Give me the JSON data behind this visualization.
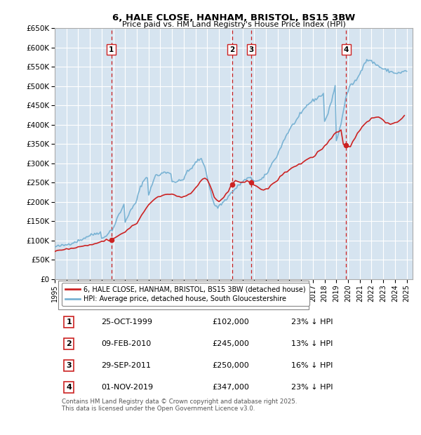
{
  "title": "6, HALE CLOSE, HANHAM, BRISTOL, BS15 3BW",
  "subtitle": "Price paid vs. HM Land Registry's House Price Index (HPI)",
  "ylim": [
    0,
    650000
  ],
  "yticks": [
    0,
    50000,
    100000,
    150000,
    200000,
    250000,
    300000,
    350000,
    400000,
    450000,
    500000,
    550000,
    600000,
    650000
  ],
  "ytick_labels": [
    "£0",
    "£50K",
    "£100K",
    "£150K",
    "£200K",
    "£250K",
    "£300K",
    "£350K",
    "£400K",
    "£450K",
    "£500K",
    "£550K",
    "£600K",
    "£650K"
  ],
  "xlim_start": 1995.0,
  "xlim_end": 2025.5,
  "plot_bg_color": "#d6e4f0",
  "grid_color": "#ffffff",
  "red_line_color": "#cc2222",
  "blue_line_color": "#7ab3d4",
  "marker_line_color": "#cc2222",
  "sale_dates": [
    1999.82,
    2010.11,
    2011.75,
    2019.84
  ],
  "sale_prices": [
    102000,
    245000,
    250000,
    347000
  ],
  "sale_labels": [
    "1",
    "2",
    "3",
    "4"
  ],
  "legend_red": "6, HALE CLOSE, HANHAM, BRISTOL, BS15 3BW (detached house)",
  "legend_blue": "HPI: Average price, detached house, South Gloucestershire",
  "table_data": [
    [
      "1",
      "25-OCT-1999",
      "£102,000",
      "23% ↓ HPI"
    ],
    [
      "2",
      "09-FEB-2010",
      "£245,000",
      "13% ↓ HPI"
    ],
    [
      "3",
      "29-SEP-2011",
      "£250,000",
      "16% ↓ HPI"
    ],
    [
      "4",
      "01-NOV-2019",
      "£347,000",
      "23% ↓ HPI"
    ]
  ],
  "footer": "Contains HM Land Registry data © Crown copyright and database right 2025.\nThis data is licensed under the Open Government Licence v3.0.",
  "hpi_years": [
    1995.0,
    1995.1,
    1995.2,
    1995.3,
    1995.4,
    1995.5,
    1995.6,
    1995.7,
    1995.8,
    1995.9,
    1996.0,
    1996.1,
    1996.2,
    1996.3,
    1996.4,
    1996.5,
    1996.6,
    1996.7,
    1996.8,
    1996.9,
    1997.0,
    1997.1,
    1997.2,
    1997.3,
    1997.4,
    1997.5,
    1997.6,
    1997.7,
    1997.8,
    1997.9,
    1998.0,
    1998.1,
    1998.2,
    1998.3,
    1998.4,
    1998.5,
    1998.6,
    1998.7,
    1998.8,
    1998.9,
    1999.0,
    1999.1,
    1999.2,
    1999.3,
    1999.4,
    1999.5,
    1999.6,
    1999.7,
    1999.8,
    1999.9,
    2000.0,
    2000.1,
    2000.2,
    2000.3,
    2000.4,
    2000.5,
    2000.6,
    2000.7,
    2000.8,
    2000.9,
    2001.0,
    2001.1,
    2001.2,
    2001.3,
    2001.4,
    2001.5,
    2001.6,
    2001.7,
    2001.8,
    2001.9,
    2002.0,
    2002.1,
    2002.2,
    2002.3,
    2002.4,
    2002.5,
    2002.6,
    2002.7,
    2002.8,
    2002.9,
    2003.0,
    2003.1,
    2003.2,
    2003.3,
    2003.4,
    2003.5,
    2003.6,
    2003.7,
    2003.8,
    2003.9,
    2004.0,
    2004.1,
    2004.2,
    2004.3,
    2004.4,
    2004.5,
    2004.6,
    2004.7,
    2004.8,
    2004.9,
    2005.0,
    2005.1,
    2005.2,
    2005.3,
    2005.4,
    2005.5,
    2005.6,
    2005.7,
    2005.8,
    2005.9,
    2006.0,
    2006.1,
    2006.2,
    2006.3,
    2006.4,
    2006.5,
    2006.6,
    2006.7,
    2006.8,
    2006.9,
    2007.0,
    2007.1,
    2007.2,
    2007.3,
    2007.4,
    2007.5,
    2007.6,
    2007.7,
    2007.8,
    2007.9,
    2008.0,
    2008.1,
    2008.2,
    2008.3,
    2008.4,
    2008.5,
    2008.6,
    2008.7,
    2008.8,
    2008.9,
    2009.0,
    2009.1,
    2009.2,
    2009.3,
    2009.4,
    2009.5,
    2009.6,
    2009.7,
    2009.8,
    2009.9,
    2010.0,
    2010.1,
    2010.2,
    2010.3,
    2010.4,
    2010.5,
    2010.6,
    2010.7,
    2010.8,
    2010.9,
    2011.0,
    2011.1,
    2011.2,
    2011.3,
    2011.4,
    2011.5,
    2011.6,
    2011.7,
    2011.8,
    2011.9,
    2012.0,
    2012.1,
    2012.2,
    2012.3,
    2012.4,
    2012.5,
    2012.6,
    2012.7,
    2012.8,
    2012.9,
    2013.0,
    2013.1,
    2013.2,
    2013.3,
    2013.4,
    2013.5,
    2013.6,
    2013.7,
    2013.8,
    2013.9,
    2014.0,
    2014.1,
    2014.2,
    2014.3,
    2014.4,
    2014.5,
    2014.6,
    2014.7,
    2014.8,
    2014.9,
    2015.0,
    2015.1,
    2015.2,
    2015.3,
    2015.4,
    2015.5,
    2015.6,
    2015.7,
    2015.8,
    2015.9,
    2016.0,
    2016.1,
    2016.2,
    2016.3,
    2016.4,
    2016.5,
    2016.6,
    2016.7,
    2016.8,
    2016.9,
    2017.0,
    2017.1,
    2017.2,
    2017.3,
    2017.4,
    2017.5,
    2017.6,
    2017.7,
    2017.8,
    2017.9,
    2018.0,
    2018.1,
    2018.2,
    2018.3,
    2018.4,
    2018.5,
    2018.6,
    2018.7,
    2018.8,
    2018.9,
    2019.0,
    2019.1,
    2019.2,
    2019.3,
    2019.4,
    2019.5,
    2019.6,
    2019.7,
    2019.8,
    2019.9,
    2020.0,
    2020.1,
    2020.2,
    2020.3,
    2020.4,
    2020.5,
    2020.6,
    2020.7,
    2020.8,
    2020.9,
    2021.0,
    2021.1,
    2021.2,
    2021.3,
    2021.4,
    2021.5,
    2021.6,
    2021.7,
    2021.8,
    2021.9,
    2022.0,
    2022.1,
    2022.2,
    2022.3,
    2022.4,
    2022.5,
    2022.6,
    2022.7,
    2022.8,
    2022.9,
    2023.0,
    2023.1,
    2023.2,
    2023.3,
    2023.4,
    2023.5,
    2023.6,
    2023.7,
    2023.8,
    2023.9,
    2024.0,
    2024.1,
    2024.2,
    2024.3,
    2024.4,
    2024.5,
    2024.6,
    2024.7,
    2024.8,
    2024.9,
    2025.0
  ],
  "hpi_values": [
    83000,
    84000,
    84500,
    85000,
    85500,
    86000,
    86500,
    87000,
    87500,
    88000,
    89000,
    90000,
    91000,
    92000,
    93000,
    94000,
    95000,
    96000,
    97000,
    98000,
    99000,
    100000,
    101500,
    103000,
    104500,
    106000,
    107500,
    109000,
    110500,
    112000,
    113000,
    114000,
    115000,
    116000,
    117000,
    118000,
    119000,
    120000,
    121000,
    122000,
    104000,
    106000,
    108000,
    111000,
    114000,
    117000,
    120000,
    123000,
    126000,
    129000,
    132000,
    140000,
    148000,
    156000,
    162000,
    168000,
    174000,
    180000,
    186000,
    192000,
    148000,
    155000,
    162000,
    168000,
    173000,
    178000,
    183000,
    188000,
    193000,
    198000,
    205000,
    217000,
    228000,
    238000,
    245000,
    250000,
    255000,
    260000,
    263000,
    266000,
    218000,
    225000,
    235000,
    245000,
    255000,
    263000,
    268000,
    270000,
    269000,
    267000,
    270000,
    273000,
    276000,
    278000,
    278000,
    277000,
    276000,
    275000,
    274000,
    273000,
    255000,
    254000,
    252000,
    252000,
    252000,
    253000,
    254000,
    255000,
    256000,
    257000,
    262000,
    268000,
    273000,
    277000,
    280000,
    283000,
    286000,
    289000,
    292000,
    295000,
    302000,
    305000,
    308000,
    310000,
    310000,
    308000,
    305000,
    298000,
    290000,
    278000,
    265000,
    252000,
    238000,
    226000,
    213000,
    200000,
    195000,
    190000,
    188000,
    186000,
    190000,
    192000,
    195000,
    198000,
    200000,
    204000,
    207000,
    210000,
    214000,
    217000,
    222000,
    225000,
    228000,
    231000,
    234000,
    237000,
    240000,
    243000,
    246000,
    249000,
    252000,
    254000,
    256000,
    258000,
    260000,
    262000,
    261000,
    260000,
    259000,
    258000,
    256000,
    255000,
    254000,
    254000,
    255000,
    256000,
    258000,
    260000,
    263000,
    266000,
    270000,
    275000,
    280000,
    286000,
    292000,
    298000,
    303000,
    308000,
    313000,
    318000,
    323000,
    330000,
    337000,
    344000,
    351000,
    358000,
    364000,
    370000,
    376000,
    381000,
    386000,
    391000,
    396000,
    400000,
    404000,
    408000,
    412000,
    416000,
    420000,
    424000,
    428000,
    433000,
    438000,
    442000,
    446000,
    450000,
    453000,
    456000,
    458000,
    460000,
    462000,
    464000,
    466000,
    468000,
    470000,
    472000,
    474000,
    476000,
    478000,
    480000,
    410000,
    415000,
    422000,
    430000,
    440000,
    452000,
    464000,
    476000,
    488000,
    500000,
    360000,
    368000,
    378000,
    390000,
    404000,
    420000,
    436000,
    452000,
    466000,
    478000,
    488000,
    495000,
    500000,
    504000,
    507000,
    510000,
    513000,
    516000,
    520000,
    525000,
    533000,
    540000,
    548000,
    555000,
    560000,
    563000,
    566000,
    568000,
    568000,
    566000,
    564000,
    562000,
    560000,
    558000,
    556000,
    554000,
    552000,
    550000,
    548000,
    546000,
    544000,
    543000,
    542000,
    541000,
    540000,
    539000,
    538000,
    537000,
    536000,
    535000,
    534000,
    534000,
    534000,
    534000,
    534000,
    535000,
    536000,
    537000,
    538000,
    539000,
    540000
  ],
  "price_years": [
    1995.0,
    1995.2,
    1995.4,
    1995.6,
    1995.8,
    1996.0,
    1996.2,
    1996.4,
    1996.6,
    1996.8,
    1997.0,
    1997.2,
    1997.4,
    1997.6,
    1997.8,
    1998.0,
    1998.2,
    1998.4,
    1998.6,
    1998.8,
    1999.0,
    1999.2,
    1999.4,
    1999.6,
    1999.8,
    2000.0,
    2000.2,
    2000.4,
    2000.6,
    2000.8,
    2001.0,
    2001.2,
    2001.4,
    2001.6,
    2001.8,
    2002.0,
    2002.2,
    2002.4,
    2002.6,
    2002.8,
    2003.0,
    2003.2,
    2003.4,
    2003.6,
    2003.8,
    2004.0,
    2004.2,
    2004.4,
    2004.6,
    2004.8,
    2005.0,
    2005.2,
    2005.4,
    2005.6,
    2005.8,
    2006.0,
    2006.2,
    2006.4,
    2006.6,
    2006.8,
    2007.0,
    2007.2,
    2007.4,
    2007.6,
    2007.8,
    2008.0,
    2008.2,
    2008.4,
    2008.6,
    2008.8,
    2009.0,
    2009.2,
    2009.4,
    2009.6,
    2009.8,
    2010.0,
    2010.2,
    2010.4,
    2010.6,
    2010.8,
    2011.0,
    2011.2,
    2011.4,
    2011.6,
    2011.8,
    2012.0,
    2012.2,
    2012.4,
    2012.6,
    2012.8,
    2013.0,
    2013.2,
    2013.4,
    2013.6,
    2013.8,
    2014.0,
    2014.2,
    2014.4,
    2014.6,
    2014.8,
    2015.0,
    2015.2,
    2015.4,
    2015.6,
    2015.8,
    2016.0,
    2016.2,
    2016.4,
    2016.6,
    2016.8,
    2017.0,
    2017.2,
    2017.4,
    2017.6,
    2017.8,
    2018.0,
    2018.2,
    2018.4,
    2018.6,
    2018.8,
    2019.0,
    2019.2,
    2019.4,
    2019.6,
    2019.8,
    2020.0,
    2020.2,
    2020.4,
    2020.6,
    2020.8,
    2021.0,
    2021.2,
    2021.4,
    2021.6,
    2021.8,
    2022.0,
    2022.2,
    2022.4,
    2022.6,
    2022.8,
    2023.0,
    2023.2,
    2023.4,
    2023.6,
    2023.8,
    2024.0,
    2024.2,
    2024.4,
    2024.6,
    2024.8
  ],
  "price_values": [
    72000,
    73000,
    74000,
    75000,
    76000,
    77000,
    78000,
    79000,
    80000,
    81000,
    82000,
    83000,
    84000,
    85000,
    86500,
    88000,
    89500,
    91000,
    93000,
    95000,
    97000,
    99000,
    100000,
    101000,
    102000,
    103000,
    107000,
    111000,
    115000,
    119000,
    123000,
    128000,
    133000,
    137000,
    141000,
    145000,
    155000,
    165000,
    175000,
    185000,
    192000,
    198000,
    205000,
    210000,
    213000,
    216000,
    219000,
    220000,
    220000,
    219000,
    218000,
    217000,
    215000,
    214000,
    213000,
    214000,
    216000,
    219000,
    223000,
    228000,
    234000,
    243000,
    252000,
    258000,
    262000,
    257000,
    245000,
    230000,
    213000,
    205000,
    200000,
    204000,
    210000,
    218000,
    228000,
    240000,
    248000,
    252000,
    254000,
    252000,
    252000,
    254000,
    256000,
    252000,
    248000,
    243000,
    238000,
    235000,
    233000,
    232000,
    233000,
    236000,
    240000,
    246000,
    252000,
    258000,
    264000,
    270000,
    275000,
    280000,
    284000,
    288000,
    291000,
    294000,
    297000,
    300000,
    304000,
    308000,
    311000,
    314000,
    317000,
    322000,
    328000,
    333000,
    338000,
    343000,
    350000,
    358000,
    365000,
    372000,
    378000,
    382000,
    385000,
    348000,
    347000,
    345000,
    342000,
    355000,
    368000,
    380000,
    388000,
    395000,
    400000,
    405000,
    410000,
    415000,
    420000,
    422000,
    420000,
    416000,
    412000,
    408000,
    405000,
    403000,
    402000,
    405000,
    408000,
    412000,
    418000,
    424000
  ]
}
